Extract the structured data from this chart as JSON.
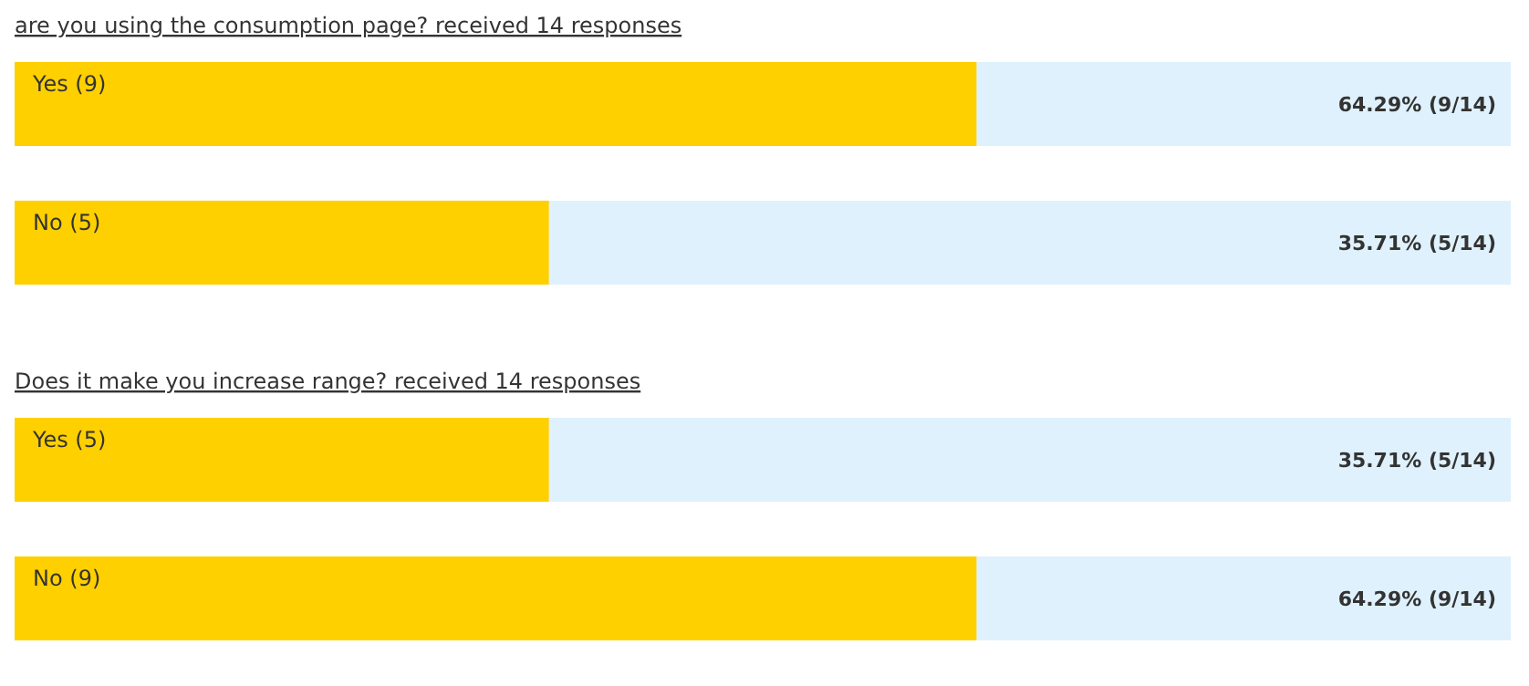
{
  "chart_data": [
    {
      "type": "bar",
      "orientation": "horizontal",
      "title": "are you using the consumption page? received 14 responses",
      "categories": [
        "Yes (9)",
        "No (5)"
      ],
      "values": [
        64.29,
        35.71
      ],
      "value_labels": [
        "64.29% (9/14)",
        "35.71% (5/14)"
      ],
      "color": "#ffd000",
      "xlim": [
        0,
        100
      ]
    },
    {
      "type": "bar",
      "orientation": "horizontal",
      "title": "Does it make you increase range? received 14 responses",
      "categories": [
        "Yes (5)",
        "No (9)"
      ],
      "values": [
        35.71,
        64.29
      ],
      "value_labels": [
        "35.71% (5/14)",
        "64.29% (9/14)"
      ],
      "color": "#ffd000",
      "xlim": [
        0,
        100
      ]
    }
  ]
}
